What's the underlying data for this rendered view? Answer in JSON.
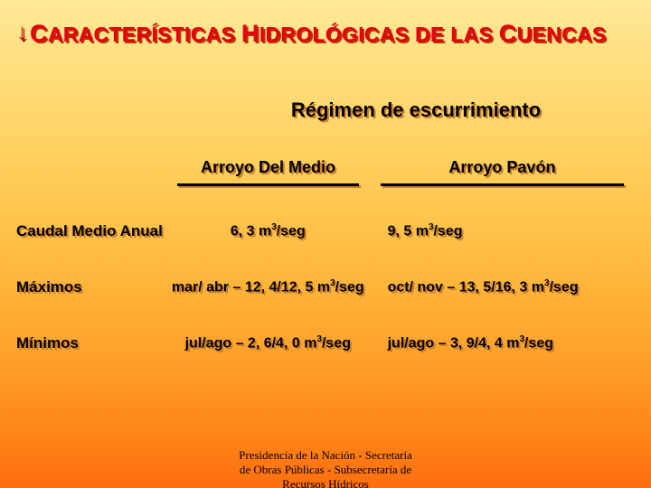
{
  "title_parts": {
    "c1": "C",
    "w1": "ARACTERÍSTICAS ",
    "c2": "H",
    "w2": "IDROLÓGICAS DE LAS ",
    "c3": "C",
    "w3": "UENCAS"
  },
  "subtitle": "Régimen de escurrimiento",
  "table": {
    "col_headers": [
      "Arroyo Del Medio",
      "Arroyo Pavón"
    ],
    "rows": [
      {
        "label": "Caudal Medio Anual",
        "c1": "6, 3 m³/seg",
        "c2": "9, 5 m³/seg"
      },
      {
        "label": "Máximos",
        "c1": "mar/ abr – 12, 4/12, 5 m³/seg",
        "c2": "oct/ nov – 13, 5/16, 3 m³/seg"
      },
      {
        "label": "Mínimos",
        "c1": "jul/ago – 2, 6/4, 0 m³/seg",
        "c2": "jul/ago – 3, 9/4, 4 m³/seg"
      }
    ]
  },
  "footer": {
    "line1": "Presidencia de la Nación - Secretaría",
    "line2": "de Obras Públicas - Subsecretaría de",
    "line3": "Recursos Hídricos"
  },
  "style": {
    "title_color": "#e40012",
    "text_color": "#000000",
    "shadow_title": "#b53600",
    "shadow_body": "#c97d2e",
    "bg_gradient_stops": [
      "#ffe998",
      "#ffdd7a",
      "#ffce5a",
      "#ffb93e",
      "#ff9e28",
      "#ff8318",
      "#ff6e0e"
    ],
    "title_fontsize_cap": 27,
    "title_fontsize_rest": 23,
    "subtitle_fontsize": 22,
    "header_fontsize": 18,
    "label_fontsize": 17,
    "cell_fontsize": 16,
    "footer_fontsize": 13,
    "row_gap": 42,
    "underline_height": 3
  }
}
